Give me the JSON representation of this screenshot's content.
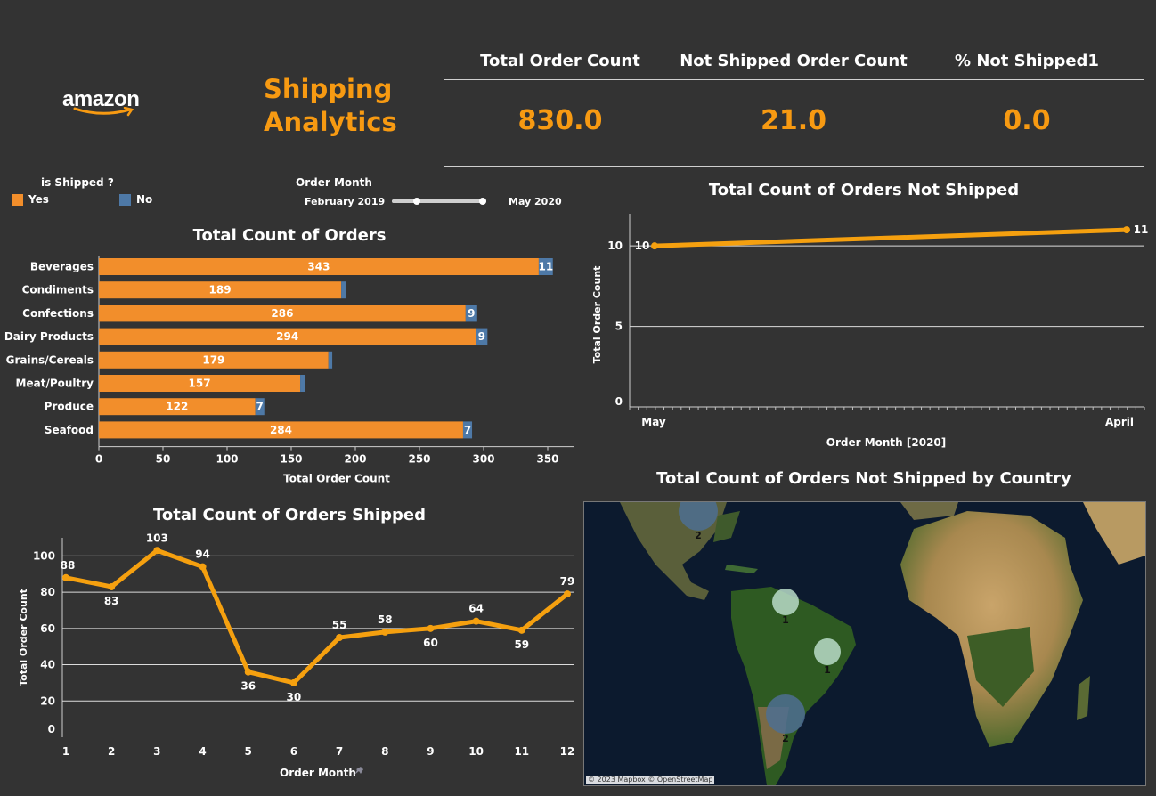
{
  "header": {
    "logo": "amazon",
    "title_line1": "Shipping",
    "title_line2": "Analytics",
    "colors": {
      "accent": "#f79a12",
      "yes": "#f28e2b",
      "no": "#4e79a7",
      "background": "#333333"
    }
  },
  "kpis": [
    {
      "label": "Total Order Count",
      "value": "830.0"
    },
    {
      "label": "Not Shipped Order Count",
      "value": "21.0"
    },
    {
      "label": "% Not Shipped1",
      "value": "0.0"
    }
  ],
  "legend": {
    "title": "is Shipped  ?",
    "yes_label": "Yes",
    "no_label": "No"
  },
  "filter": {
    "title": "Order Month",
    "start": "February 2019",
    "end": "May 2020",
    "range_fraction": [
      0.0,
      1.0
    ]
  },
  "chart_data": [
    {
      "id": "orders-by-category",
      "type": "bar",
      "title": "Total Count of Orders",
      "xlabel": "Total Order Count",
      "ylabel": "",
      "xlim": [
        0,
        360
      ],
      "ticks": [
        0,
        50,
        100,
        150,
        200,
        250,
        300,
        350
      ],
      "categories": [
        "Beverages",
        "Condiments",
        "Confections",
        "Dairy Products",
        "Grains/Cereals",
        "Meat/Poultry",
        "Produce",
        "Seafood"
      ],
      "series": [
        {
          "name": "Yes",
          "values": [
            343,
            189,
            286,
            294,
            179,
            157,
            122,
            284
          ],
          "show_labels": [
            true,
            true,
            true,
            true,
            true,
            true,
            true,
            true
          ]
        },
        {
          "name": "No",
          "values": [
            11,
            4,
            9,
            9,
            3,
            4,
            7,
            7
          ],
          "show_labels": [
            true,
            false,
            true,
            true,
            false,
            false,
            true,
            true
          ]
        }
      ],
      "stacked": true
    },
    {
      "id": "orders-shipped",
      "type": "line",
      "title": "Total Count of Orders Shipped",
      "xlabel": "Order Month",
      "ylabel": "Total Order Count",
      "x": [
        1,
        2,
        3,
        4,
        5,
        6,
        7,
        8,
        9,
        10,
        11,
        12
      ],
      "values": [
        88,
        83,
        103,
        94,
        36,
        30,
        55,
        58,
        60,
        64,
        59,
        79
      ],
      "ylim": [
        0,
        110
      ],
      "yticks": [
        0,
        20,
        40,
        60,
        80,
        100
      ]
    },
    {
      "id": "orders-not-shipped",
      "type": "line",
      "title": "Total Count of Orders Not Shipped",
      "xlabel": "Order Month [2020]",
      "ylabel": "Total Order Count",
      "categories": [
        "May",
        "April"
      ],
      "values": [
        10,
        11
      ],
      "ylim": [
        0,
        12
      ],
      "yticks": [
        0,
        5,
        10
      ]
    }
  ],
  "map": {
    "title": "Total Count of Orders Not Shipped by Country",
    "credit": "© 2023 Mapbox © OpenStreetMap",
    "points": [
      {
        "label": "2"
      },
      {
        "label": "1"
      },
      {
        "label": "1"
      },
      {
        "label": "2"
      }
    ]
  }
}
